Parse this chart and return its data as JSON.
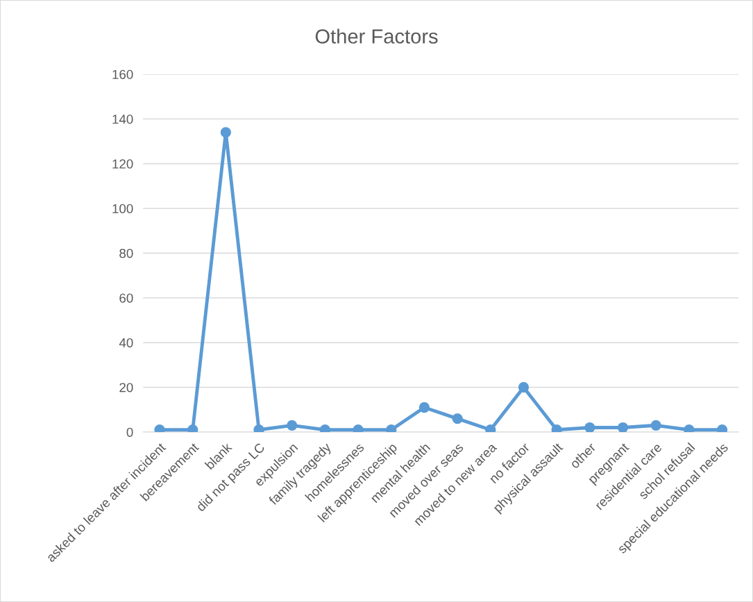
{
  "chart_data": {
    "type": "line",
    "title": "Other Factors",
    "categories": [
      "asked to leave after incident",
      "bereavement",
      "blank",
      "did not pass LC",
      "expulsion",
      "family tragedy",
      "homelessnes",
      "left apprenticeship",
      "mental health",
      "moved over seas",
      "moved to new area",
      "no factor",
      "physical assault",
      "other",
      "pregnant",
      "residential care",
      "schol refusal",
      "special educational needs"
    ],
    "series": [
      {
        "color": "#5b9bd5",
        "values": [
          1,
          1,
          134,
          1,
          3,
          1,
          1,
          1,
          11,
          6,
          1,
          20,
          1,
          2,
          2,
          3,
          1,
          1
        ]
      }
    ],
    "ylim": [
      0,
      160
    ],
    "yticks": [
      0,
      20,
      40,
      60,
      80,
      100,
      120,
      140,
      160
    ],
    "grid": "y",
    "marker": "circle",
    "line_style": "solid",
    "legend": false
  }
}
